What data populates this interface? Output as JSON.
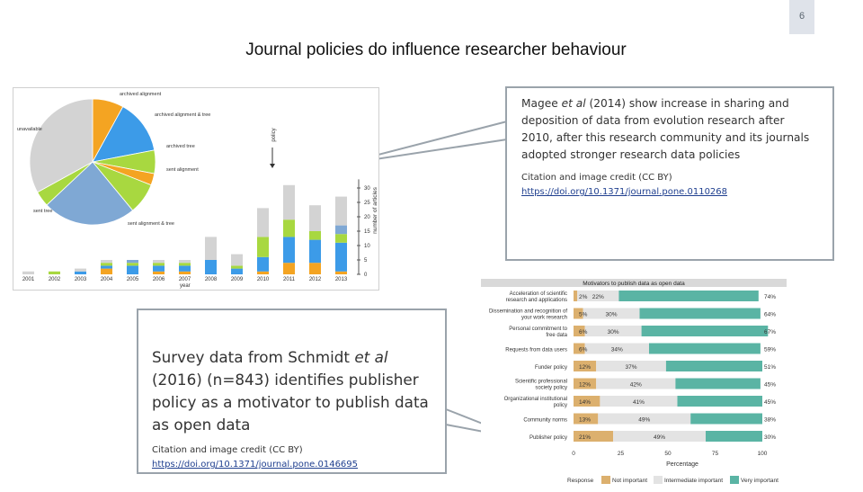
{
  "slide_number": "6",
  "title": "Journal policies do influence researcher behaviour",
  "callout_top": {
    "text_before": "Magee ",
    "text_italic": "et al",
    "text_after": " (2014) show increase in sharing and deposition of data from evolution research after 2010, after this research community and its journals adopted stronger research data policies",
    "credit": "Citation and image credit (CC BY)",
    "link": "https://doi.org/10.1371/journal.pone.0110268"
  },
  "callout_bottom": {
    "text_before": "Survey data from Schmidt ",
    "text_italic": "et al",
    "text_after": " (2016) (n=843) identifies publisher policy as a motivator to publish data as open data",
    "credit": "Citation and image credit (CC BY)",
    "link": "https://doi.org/10.1371/journal.pone.0146695"
  },
  "chart_data": [
    {
      "type": "bar",
      "categories": [
        "2001",
        "2002",
        "2003",
        "2004",
        "2005",
        "2006",
        "2007",
        "2008",
        "2009",
        "2010",
        "2011",
        "2012",
        "2013"
      ],
      "xlabel": "year",
      "ylabel": "number of articles",
      "ylim": [
        0,
        33
      ],
      "yticks": [
        0,
        5,
        10,
        15,
        20,
        25,
        30
      ],
      "stacked": true,
      "series": [
        {
          "color": "#f4a422",
          "values": [
            0,
            0,
            0,
            2,
            0,
            1,
            1,
            0,
            0,
            1,
            4,
            4,
            1
          ]
        },
        {
          "color": "#3c9be8",
          "values": [
            0,
            0,
            1,
            1,
            3,
            2,
            2,
            5,
            2,
            5,
            9,
            8,
            10
          ]
        },
        {
          "color": "#a8d840",
          "values": [
            0,
            1,
            0,
            1,
            1,
            1,
            1,
            0,
            1,
            7,
            6,
            3,
            3
          ]
        },
        {
          "color": "#7fa8d4",
          "values": [
            0,
            0,
            0,
            0,
            1,
            0,
            0,
            0,
            0,
            0,
            0,
            0,
            3
          ]
        },
        {
          "color": "#d3d3d3",
          "values": [
            1,
            0,
            1,
            1,
            0,
            1,
            1,
            8,
            4,
            10,
            12,
            9,
            10
          ]
        }
      ],
      "annotation": "policy",
      "pie": {
        "slices": [
          {
            "label": "archived alignment",
            "value": 8,
            "color": "#f4a422"
          },
          {
            "label": "archived alignment & tree",
            "value": 14,
            "color": "#3c9be8"
          },
          {
            "label": "archived tree",
            "value": 6,
            "color": "#a8d840"
          },
          {
            "label": "sent alignment",
            "value": 3,
            "color": "#f4a422"
          },
          {
            "label": "",
            "value": 8,
            "color": "#a8d840"
          },
          {
            "label": "sent alignment & tree",
            "value": 24,
            "color": "#7fa8d4"
          },
          {
            "label": "sent tree",
            "value": 4,
            "color": "#a8d840"
          },
          {
            "label": "unavailable",
            "value": 33,
            "color": "#d3d3d3"
          }
        ]
      }
    },
    {
      "type": "bar",
      "title": "Motivators to publish data as open data",
      "xlabel": "Percentage",
      "xlim": [
        0,
        100
      ],
      "xticks": [
        0,
        25,
        50,
        75,
        100
      ],
      "stacked": true,
      "orientation": "horizontal",
      "categories": [
        "Acceleration of scientific research and applications",
        "Dissemination and recognition of your work research",
        "Personal commitment to free data",
        "Requests from data users",
        "Funder policy",
        "Scientific professional society policy",
        "Organizational institutional policy",
        "Community norms",
        "Publisher policy"
      ],
      "series": [
        {
          "name": "Not important",
          "color": "#dcb06e",
          "values": [
            2,
            5,
            6,
            6,
            12,
            12,
            14,
            13,
            21
          ]
        },
        {
          "name": "Intermediate important",
          "color": "#e3e3e3",
          "values": [
            22,
            30,
            30,
            34,
            37,
            42,
            41,
            49,
            49
          ]
        },
        {
          "name": "Very important",
          "color": "#5ab4a4",
          "values": [
            74,
            64,
            67,
            59,
            51,
            45,
            45,
            38,
            30
          ]
        }
      ],
      "legend_title": "Response",
      "legend": "bottom"
    }
  ]
}
